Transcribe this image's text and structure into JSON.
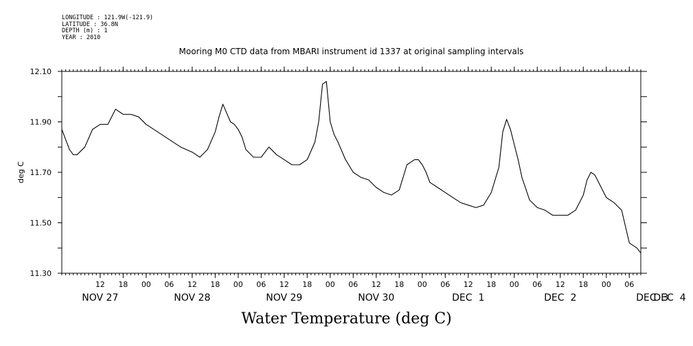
{
  "meta": {
    "longitude": "LONGITUDE : 121.9W(-121.9)",
    "latitude": "LATITUDE : 36.8N",
    "depth": "DEPTH (m) : 1",
    "year": "YEAR : 2010"
  },
  "title": "Mooring M0 CTD data from MBARI instrument id 1337 at original sampling intervals",
  "chart_data": {
    "type": "line",
    "title": "Mooring M0 CTD data from MBARI instrument id 1337 at original sampling intervals",
    "xlabel": "Water Temperature (deg C)",
    "ylabel": "deg C",
    "ylim": [
      11.3,
      12.1
    ],
    "xlim_hours_from_nov27_00": [
      2.0,
      153.0
    ],
    "y_tick_labels": [
      "12.10",
      "11.90",
      "11.70",
      "11.50",
      "11.30"
    ],
    "y_tick_values": [
      12.1,
      11.9,
      11.7,
      11.5,
      11.3
    ],
    "hour_ticks": [
      {
        "h": 12,
        "label": "12"
      },
      {
        "h": 18,
        "label": "18"
      },
      {
        "h": 24,
        "label": "00"
      },
      {
        "h": 30,
        "label": "06"
      },
      {
        "h": 36,
        "label": "12"
      },
      {
        "h": 42,
        "label": "18"
      },
      {
        "h": 48,
        "label": "00"
      },
      {
        "h": 54,
        "label": "06"
      },
      {
        "h": 60,
        "label": "12"
      },
      {
        "h": 66,
        "label": "18"
      },
      {
        "h": 72,
        "label": "00"
      },
      {
        "h": 78,
        "label": "06"
      },
      {
        "h": 84,
        "label": "12"
      },
      {
        "h": 90,
        "label": "18"
      },
      {
        "h": 96,
        "label": "00"
      },
      {
        "h": 102,
        "label": "06"
      },
      {
        "h": 108,
        "label": "12"
      },
      {
        "h": 114,
        "label": "18"
      },
      {
        "h": 120,
        "label": "00"
      },
      {
        "h": 126,
        "label": "06"
      },
      {
        "h": 132,
        "label": "12"
      },
      {
        "h": 138,
        "label": "18"
      },
      {
        "h": 144,
        "label": "00"
      },
      {
        "h": 150,
        "label": "06"
      }
    ],
    "day_labels": [
      {
        "h": 12,
        "label": "NOV 27"
      },
      {
        "h": 36,
        "label": "NOV 28"
      },
      {
        "h": 60,
        "label": "NOV 29"
      },
      {
        "h": 84,
        "label": "NOV 30"
      },
      {
        "h": 108,
        "label": "DEC  1"
      },
      {
        "h": 132,
        "label": "DEC  2"
      },
      {
        "h": 156,
        "label": "DEC  3"
      },
      {
        "h": 172,
        "label": "DEC  4"
      }
    ],
    "series": [
      {
        "x": [
          2,
          3,
          4,
          5,
          6,
          8,
          10,
          12,
          14,
          16,
          18,
          19,
          20,
          22,
          24,
          27,
          30,
          33,
          36,
          38,
          40,
          42,
          43,
          44,
          46,
          47,
          48,
          49,
          50,
          52,
          54,
          56,
          58,
          60,
          62,
          64,
          66,
          68,
          69,
          70,
          71,
          71.5,
          72,
          73,
          74,
          76,
          78,
          80,
          82,
          84,
          86,
          88,
          90,
          92,
          94,
          95,
          96,
          97,
          98,
          100,
          102,
          104,
          106,
          108,
          110,
          112,
          114,
          116,
          117,
          118,
          119,
          120,
          121,
          122,
          124,
          126,
          128,
          130,
          132,
          134,
          136,
          138,
          139,
          140,
          141,
          142,
          144,
          146,
          148,
          150,
          151,
          152,
          153
        ],
        "y": [
          11.87,
          11.83,
          11.79,
          11.77,
          11.77,
          11.8,
          11.87,
          11.89,
          11.89,
          11.95,
          11.93,
          11.93,
          11.93,
          11.92,
          11.89,
          11.86,
          11.83,
          11.8,
          11.78,
          11.76,
          11.79,
          11.86,
          11.92,
          11.97,
          11.9,
          11.89,
          11.87,
          11.84,
          11.79,
          11.76,
          11.76,
          11.8,
          11.77,
          11.75,
          11.73,
          11.73,
          11.75,
          11.82,
          11.9,
          12.05,
          12.06,
          11.98,
          11.9,
          11.85,
          11.82,
          11.75,
          11.7,
          11.68,
          11.67,
          11.64,
          11.62,
          11.61,
          11.63,
          11.73,
          11.75,
          11.75,
          11.73,
          11.7,
          11.66,
          11.64,
          11.62,
          11.6,
          11.58,
          11.57,
          11.56,
          11.57,
          11.62,
          11.72,
          11.86,
          11.91,
          11.87,
          11.81,
          11.75,
          11.68,
          11.59,
          11.56,
          11.55,
          11.53,
          11.53,
          11.53,
          11.55,
          11.61,
          11.67,
          11.7,
          11.69,
          11.66,
          11.6,
          11.58,
          11.55,
          11.42,
          11.41,
          11.4,
          11.38
        ]
      }
    ]
  }
}
